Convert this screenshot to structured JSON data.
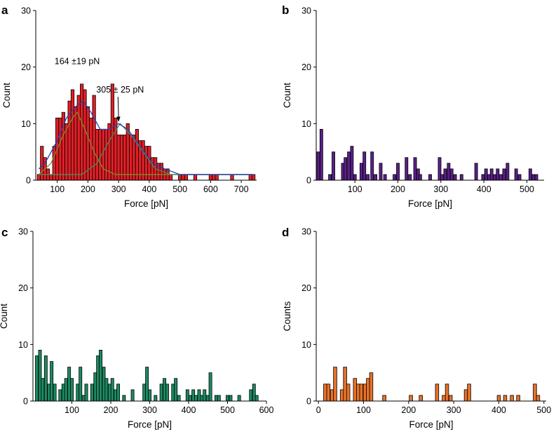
{
  "chart_data": [
    {
      "type": "bar",
      "panel": "a",
      "xlabel": "Force [pN]",
      "ylabel": "Count",
      "xlim": [
        30,
        750
      ],
      "ylim": [
        0,
        30
      ],
      "xticks": [
        100,
        200,
        300,
        400,
        500,
        600,
        700
      ],
      "yticks": [
        0,
        10,
        20,
        30
      ],
      "color": "#e11f26",
      "bin_width": 10,
      "bins": [
        [
          40,
          1
        ],
        [
          50,
          6
        ],
        [
          60,
          4
        ],
        [
          70,
          2
        ],
        [
          80,
          1
        ],
        [
          90,
          6
        ],
        [
          100,
          11
        ],
        [
          110,
          11
        ],
        [
          120,
          12
        ],
        [
          130,
          10
        ],
        [
          140,
          14
        ],
        [
          150,
          16
        ],
        [
          160,
          13
        ],
        [
          170,
          15
        ],
        [
          180,
          17
        ],
        [
          190,
          16
        ],
        [
          200,
          13
        ],
        [
          210,
          11
        ],
        [
          220,
          15
        ],
        [
          230,
          9
        ],
        [
          240,
          9
        ],
        [
          250,
          9
        ],
        [
          260,
          9
        ],
        [
          270,
          10
        ],
        [
          280,
          17
        ],
        [
          290,
          11
        ],
        [
          300,
          8
        ],
        [
          310,
          8
        ],
        [
          320,
          8
        ],
        [
          330,
          10
        ],
        [
          340,
          8
        ],
        [
          350,
          8
        ],
        [
          360,
          9
        ],
        [
          370,
          7
        ],
        [
          380,
          7
        ],
        [
          390,
          6
        ],
        [
          400,
          6
        ],
        [
          410,
          4
        ],
        [
          420,
          4
        ],
        [
          430,
          3
        ],
        [
          440,
          3
        ],
        [
          450,
          2
        ],
        [
          460,
          2
        ],
        [
          470,
          1
        ],
        [
          500,
          1
        ],
        [
          510,
          1
        ],
        [
          520,
          1
        ],
        [
          550,
          1
        ],
        [
          600,
          1
        ],
        [
          610,
          1
        ],
        [
          620,
          1
        ],
        [
          670,
          1
        ],
        [
          730,
          1
        ],
        [
          740,
          1
        ]
      ],
      "curves": [
        {
          "name": "Gaussian 1",
          "color": "#7d8a2a",
          "points": [
            [
              40,
              1
            ],
            [
              80,
              3
            ],
            [
              120,
              8
            ],
            [
              150,
              11
            ],
            [
              165,
              12
            ],
            [
              190,
              9
            ],
            [
              220,
              5
            ],
            [
              250,
              2
            ],
            [
              290,
              1
            ],
            [
              400,
              1
            ],
            [
              740,
              1
            ]
          ]
        },
        {
          "name": "Gaussian 2",
          "color": "#4a8a5a",
          "points": [
            [
              40,
              1
            ],
            [
              180,
              1
            ],
            [
              230,
              3
            ],
            [
              270,
              7
            ],
            [
              305,
              10
            ],
            [
              340,
              8
            ],
            [
              380,
              5
            ],
            [
              420,
              2
            ],
            [
              470,
              1
            ],
            [
              740,
              1
            ]
          ]
        },
        {
          "name": "Fit sum",
          "color": "#2342b5",
          "points": [
            [
              40,
              2
            ],
            [
              60,
              3
            ],
            [
              100,
              7
            ],
            [
              130,
              11
            ],
            [
              160,
              13
            ],
            [
              185,
              14
            ],
            [
              210,
              12
            ],
            [
              240,
              9
            ],
            [
              270,
              9
            ],
            [
              300,
              10
            ],
            [
              330,
              9
            ],
            [
              370,
              6
            ],
            [
              410,
              3
            ],
            [
              450,
              2
            ],
            [
              500,
              1
            ],
            [
              740,
              1
            ]
          ]
        }
      ],
      "annotations": [
        {
          "text": "164 ±19 pN",
          "x": 165,
          "y": 20.5
        },
        {
          "text": "305 ± 25 pN",
          "x": 305,
          "y": 15.5,
          "arrow_to": [
            300,
            10.3
          ]
        }
      ]
    },
    {
      "type": "bar",
      "panel": "b",
      "xlabel": "Force [pN]",
      "ylabel": "Count",
      "xlim": [
        10,
        540
      ],
      "ylim": [
        0,
        30
      ],
      "xticks": [
        100,
        200,
        300,
        400,
        500
      ],
      "yticks": [
        0,
        10,
        20,
        30
      ],
      "color": "#5b1f8a",
      "bin_width": 6.6,
      "bins": [
        [
          15,
          5
        ],
        [
          22,
          9
        ],
        [
          42,
          1
        ],
        [
          50,
          5
        ],
        [
          72,
          3
        ],
        [
          78,
          4
        ],
        [
          86,
          5
        ],
        [
          93,
          6
        ],
        [
          100,
          1
        ],
        [
          115,
          3
        ],
        [
          122,
          5
        ],
        [
          130,
          1
        ],
        [
          140,
          5
        ],
        [
          148,
          1
        ],
        [
          160,
          3
        ],
        [
          170,
          1
        ],
        [
          192,
          1
        ],
        [
          200,
          3
        ],
        [
          220,
          4
        ],
        [
          228,
          1
        ],
        [
          240,
          4
        ],
        [
          247,
          2
        ],
        [
          252,
          1
        ],
        [
          275,
          1
        ],
        [
          297,
          4
        ],
        [
          303,
          1
        ],
        [
          310,
          2
        ],
        [
          318,
          3
        ],
        [
          325,
          2
        ],
        [
          333,
          1
        ],
        [
          348,
          1
        ],
        [
          382,
          3
        ],
        [
          398,
          1
        ],
        [
          405,
          2
        ],
        [
          412,
          1
        ],
        [
          418,
          2
        ],
        [
          425,
          1
        ],
        [
          432,
          2
        ],
        [
          440,
          1
        ],
        [
          447,
          2
        ],
        [
          455,
          3
        ],
        [
          475,
          2
        ],
        [
          483,
          1
        ],
        [
          508,
          2
        ],
        [
          515,
          1
        ],
        [
          522,
          1
        ]
      ]
    },
    {
      "type": "bar",
      "panel": "c",
      "xlabel": "Force [pN]",
      "ylabel": "Count",
      "xlim": [
        0,
        600
      ],
      "ylim": [
        0,
        30
      ],
      "xticks": [
        100,
        200,
        300,
        400,
        500,
        600
      ],
      "yticks": [
        0,
        10,
        20,
        30
      ],
      "color": "#1d8a62",
      "bin_width": 7.4,
      "bins": [
        [
          10,
          8
        ],
        [
          18,
          9
        ],
        [
          25,
          4
        ],
        [
          33,
          8
        ],
        [
          41,
          3
        ],
        [
          48,
          7
        ],
        [
          56,
          3
        ],
        [
          70,
          2
        ],
        [
          78,
          3
        ],
        [
          85,
          4
        ],
        [
          93,
          6
        ],
        [
          100,
          4
        ],
        [
          115,
          3
        ],
        [
          122,
          6
        ],
        [
          130,
          1
        ],
        [
          137,
          3
        ],
        [
          152,
          3
        ],
        [
          160,
          5
        ],
        [
          167,
          8
        ],
        [
          174,
          9
        ],
        [
          182,
          6
        ],
        [
          189,
          4
        ],
        [
          197,
          3
        ],
        [
          204,
          4
        ],
        [
          212,
          2
        ],
        [
          219,
          3
        ],
        [
          234,
          1
        ],
        [
          256,
          2
        ],
        [
          286,
          3
        ],
        [
          293,
          6
        ],
        [
          300,
          2
        ],
        [
          315,
          1
        ],
        [
          330,
          3
        ],
        [
          338,
          4
        ],
        [
          345,
          3
        ],
        [
          360,
          3
        ],
        [
          367,
          4
        ],
        [
          375,
          1
        ],
        [
          397,
          2
        ],
        [
          404,
          1
        ],
        [
          412,
          2
        ],
        [
          419,
          1
        ],
        [
          427,
          2
        ],
        [
          434,
          1
        ],
        [
          441,
          2
        ],
        [
          449,
          1
        ],
        [
          456,
          5
        ],
        [
          471,
          1
        ],
        [
          478,
          1
        ],
        [
          500,
          1
        ],
        [
          508,
          1
        ],
        [
          530,
          1
        ],
        [
          560,
          2
        ],
        [
          568,
          3
        ],
        [
          575,
          1
        ]
      ]
    },
    {
      "type": "bar",
      "panel": "d",
      "xlabel": "Force [pN]",
      "ylabel": "Counts",
      "xlim": [
        -5,
        505
      ],
      "ylim": [
        0,
        30
      ],
      "xticks": [
        0,
        100,
        200,
        300,
        400,
        500
      ],
      "yticks": [
        0,
        10,
        20,
        30
      ],
      "color": "#e8722a",
      "bin_width": 7.3,
      "bins": [
        [
          15,
          3
        ],
        [
          22,
          3
        ],
        [
          30,
          2
        ],
        [
          37,
          6
        ],
        [
          52,
          2
        ],
        [
          59,
          6
        ],
        [
          66,
          3
        ],
        [
          81,
          4
        ],
        [
          88,
          3
        ],
        [
          95,
          3
        ],
        [
          103,
          3
        ],
        [
          110,
          4
        ],
        [
          117,
          5
        ],
        [
          146,
          1
        ],
        [
          205,
          1
        ],
        [
          227,
          1
        ],
        [
          263,
          3
        ],
        [
          278,
          1
        ],
        [
          285,
          3
        ],
        [
          293,
          1
        ],
        [
          327,
          2
        ],
        [
          334,
          3
        ],
        [
          400,
          1
        ],
        [
          414,
          1
        ],
        [
          429,
          1
        ],
        [
          443,
          1
        ],
        [
          480,
          3
        ],
        [
          487,
          1
        ]
      ]
    }
  ],
  "panel_labels": [
    "a",
    "b",
    "c",
    "d"
  ]
}
